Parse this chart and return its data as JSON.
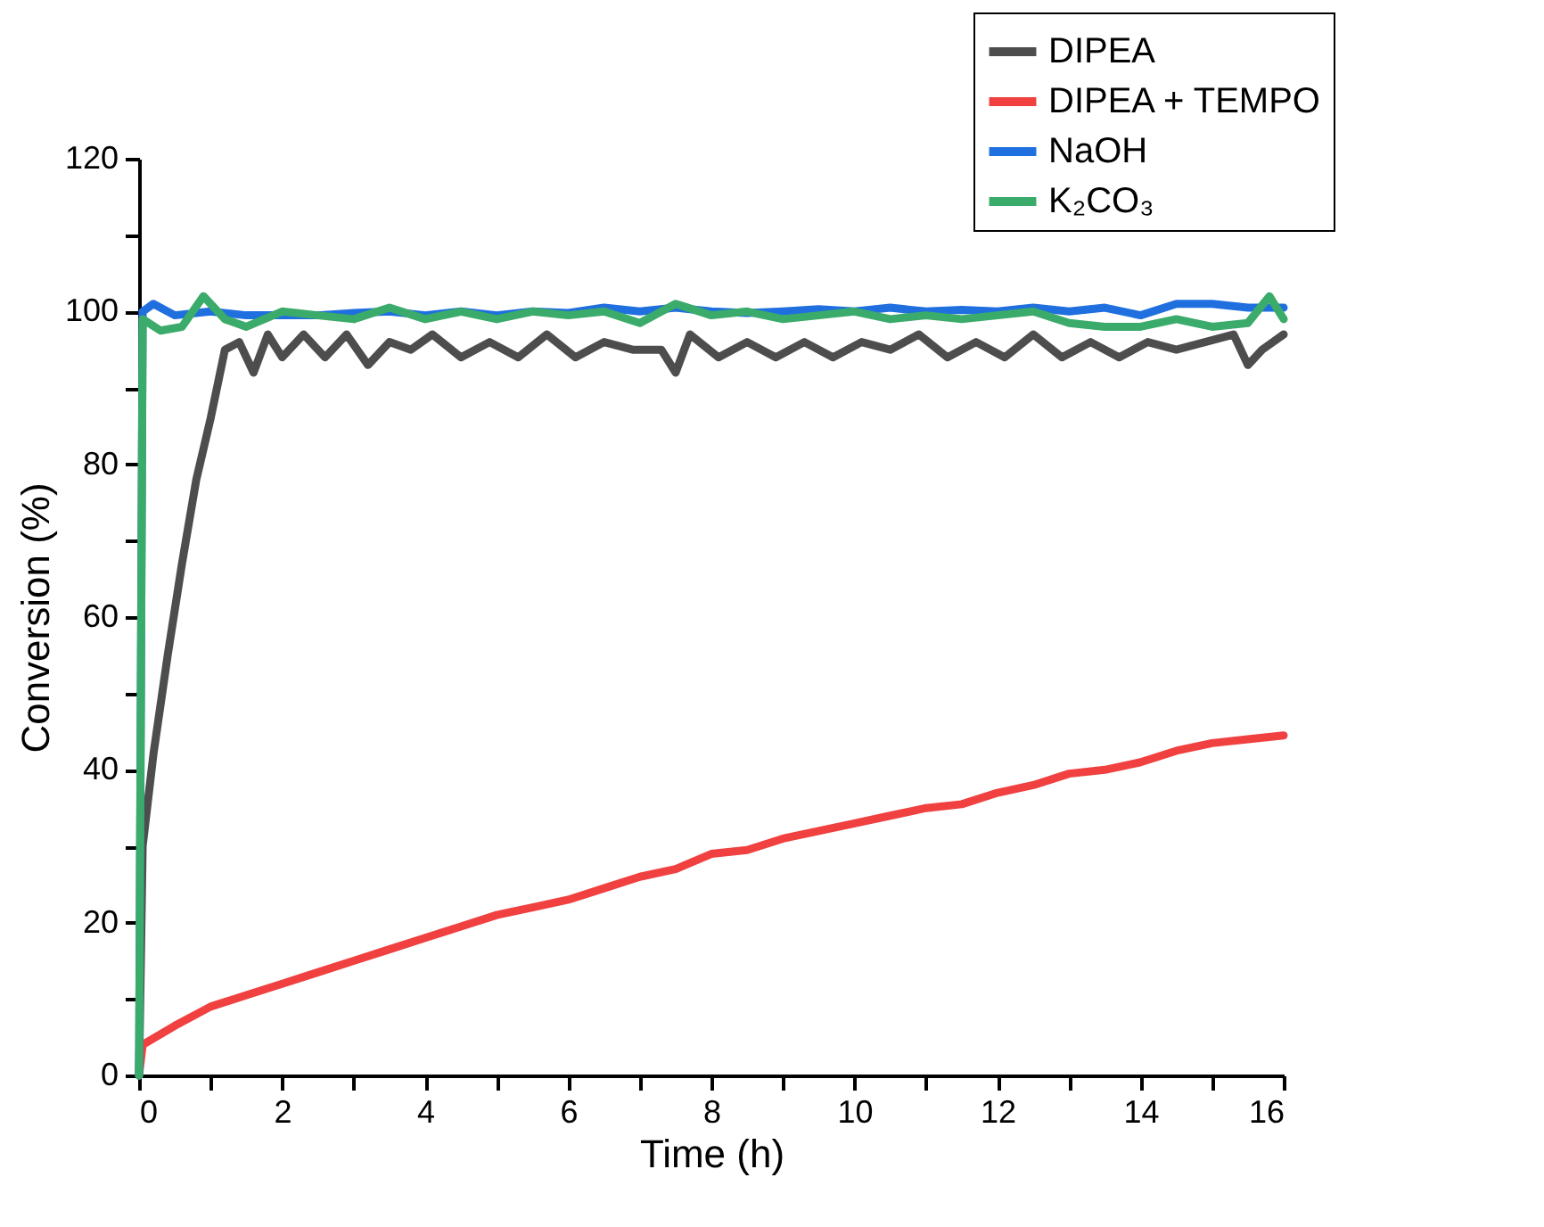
{
  "chart_data": {
    "type": "line",
    "xlabel": "Time (h)",
    "ylabel": "Conversion (%)",
    "xlim": [
      0,
      16
    ],
    "ylim": [
      0,
      120
    ],
    "xticks": [
      0,
      {
        "value": 1,
        "label": null
      },
      2,
      {
        "value": 3,
        "label": null
      },
      4,
      {
        "value": 5,
        "label": null
      },
      6,
      {
        "value": 7,
        "label": null
      },
      8,
      {
        "value": 9,
        "label": null
      },
      10,
      {
        "value": 11,
        "label": null
      },
      12,
      {
        "value": 13,
        "label": null
      },
      14,
      {
        "value": 15,
        "label": null
      },
      16
    ],
    "yticks": [
      0,
      {
        "value": 10,
        "label": null
      },
      20,
      {
        "value": 30,
        "label": null
      },
      40,
      {
        "value": 50,
        "label": null
      },
      60,
      {
        "value": 70,
        "label": null
      },
      80,
      {
        "value": 90,
        "label": null
      },
      100,
      {
        "value": 110,
        "label": null
      },
      120
    ],
    "grid": false,
    "legend": "top right",
    "marker": "none",
    "line_style": "solid",
    "series": [
      {
        "name": "DIPEA",
        "color": "#4d4d4d",
        "x": [
          0,
          0.05,
          0.2,
          0.4,
          0.6,
          0.8,
          1.0,
          1.2,
          1.4,
          1.6,
          1.8,
          2.0,
          2.3,
          2.6,
          2.9,
          3.2,
          3.5,
          3.8,
          4.1,
          4.5,
          4.9,
          5.3,
          5.7,
          6.1,
          6.5,
          6.9,
          7.3,
          7.5,
          7.7,
          8.1,
          8.5,
          8.9,
          9.3,
          9.7,
          10.1,
          10.5,
          10.9,
          11.3,
          11.7,
          12.1,
          12.5,
          12.9,
          13.3,
          13.7,
          14.1,
          14.5,
          14.9,
          15.3,
          15.5,
          15.7,
          16
        ],
        "values": [
          0,
          30,
          42,
          55,
          67,
          78,
          86,
          95,
          96,
          92,
          97,
          94,
          97,
          94,
          97,
          93,
          96,
          95,
          97,
          94,
          96,
          94,
          97,
          94,
          96,
          95,
          95,
          92,
          97,
          94,
          96,
          94,
          96,
          94,
          96,
          95,
          97,
          94,
          96,
          94,
          97,
          94,
          96,
          94,
          96,
          95,
          96,
          97,
          93,
          95,
          97
        ]
      },
      {
        "name": "DIPEA + TEMPO",
        "color": "#f04040",
        "x": [
          0,
          0.05,
          0.5,
          1,
          1.5,
          2,
          2.5,
          3,
          3.5,
          4,
          4.5,
          5,
          5.5,
          6,
          6.5,
          7,
          7.5,
          8,
          8.5,
          9,
          9.5,
          10,
          10.5,
          11,
          11.5,
          12,
          12.5,
          13,
          13.5,
          14,
          14.5,
          15,
          15.5,
          16
        ],
        "values": [
          0,
          4,
          6.5,
          9,
          10.5,
          12,
          13.5,
          15,
          16.5,
          18,
          19.5,
          21,
          22,
          23,
          24.5,
          26,
          27,
          29,
          29.5,
          31,
          32,
          33,
          34,
          35,
          35.5,
          37,
          38,
          39.5,
          40,
          41,
          42.5,
          43.5,
          44,
          44.5
        ]
      },
      {
        "name": "NaOH",
        "color": "#1f6fdf",
        "x": [
          0,
          0.05,
          0.2,
          0.5,
          1,
          1.5,
          2,
          2.5,
          3,
          3.5,
          4,
          4.5,
          5,
          5.5,
          6,
          6.5,
          7,
          7.5,
          8,
          8.5,
          9,
          9.5,
          10,
          10.5,
          11,
          11.5,
          12,
          12.5,
          13,
          13.5,
          14,
          14.5,
          15,
          15.5,
          16
        ],
        "values": [
          0,
          100,
          101,
          99.5,
          100,
          99.5,
          99.5,
          99.5,
          99.8,
          100,
          99.5,
          100,
          99.5,
          100,
          99.8,
          100.5,
          100,
          100.5,
          100,
          99.8,
          100,
          100.3,
          100,
          100.5,
          100,
          100.2,
          100,
          100.5,
          100,
          100.5,
          99.5,
          101,
          101,
          100.5,
          100.5
        ]
      },
      {
        "name": "K₂CO₃",
        "color": "#3aab6a",
        "x": [
          0,
          0.05,
          0.3,
          0.6,
          0.9,
          1.2,
          1.5,
          2,
          2.5,
          3,
          3.5,
          4,
          4.5,
          5,
          5.5,
          6,
          6.5,
          7,
          7.5,
          8,
          8.5,
          9,
          9.5,
          10,
          10.5,
          11,
          11.5,
          12,
          12.5,
          13,
          13.5,
          14,
          14.5,
          15,
          15.5,
          15.8,
          16
        ],
        "values": [
          0,
          99,
          97.5,
          98,
          102,
          99,
          98,
          100,
          99.5,
          99,
          100.5,
          99,
          100,
          99,
          100,
          99.5,
          100,
          98.5,
          101,
          99.5,
          100,
          99,
          99.5,
          100,
          99,
          99.5,
          99,
          99.5,
          100,
          98.5,
          98,
          98,
          99,
          98,
          98.5,
          102,
          99
        ]
      }
    ]
  }
}
